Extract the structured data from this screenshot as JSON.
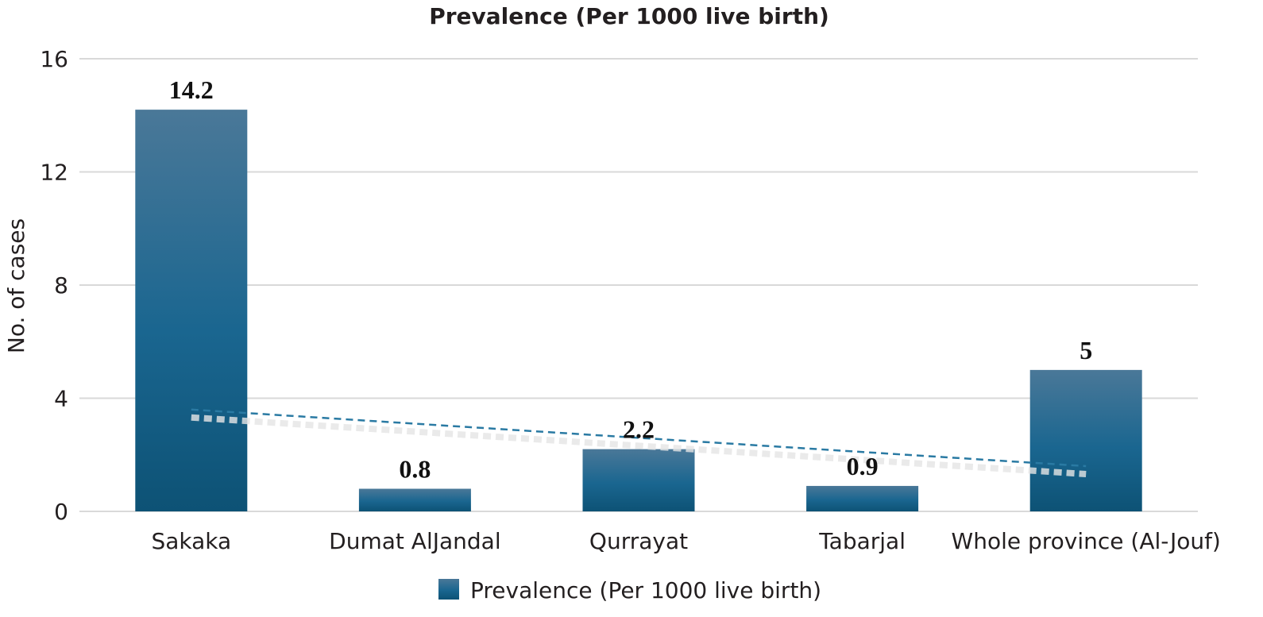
{
  "chart_data": {
    "type": "bar",
    "title": "Prevalence (Per 1000 live birth)",
    "ylabel": "No. of cases",
    "xlabel": "",
    "ylim": [
      0,
      16
    ],
    "yticks": [
      0,
      4,
      8,
      12,
      16
    ],
    "categories": [
      "Sakaka",
      "Dumat AlJandal",
      "Qurrayat",
      "Tabarjal",
      "Whole province (Al-Jouf)"
    ],
    "series": [
      {
        "name": "Prevalence (Per 1000 live birth)",
        "values": [
          14.2,
          0.8,
          2.2,
          0.9,
          5
        ],
        "labels": [
          "14.2",
          "0.8",
          "2.2",
          "0.9",
          "5"
        ]
      }
    ],
    "trendline": {
      "type": "linear",
      "style": "dashed",
      "start": 3.6,
      "end": 1.6
    },
    "grid": true,
    "legend": "bottom",
    "colors": {
      "bar": "#0f5b80",
      "bar_top": "#4a7898",
      "trend": "#2a7aa3"
    }
  }
}
